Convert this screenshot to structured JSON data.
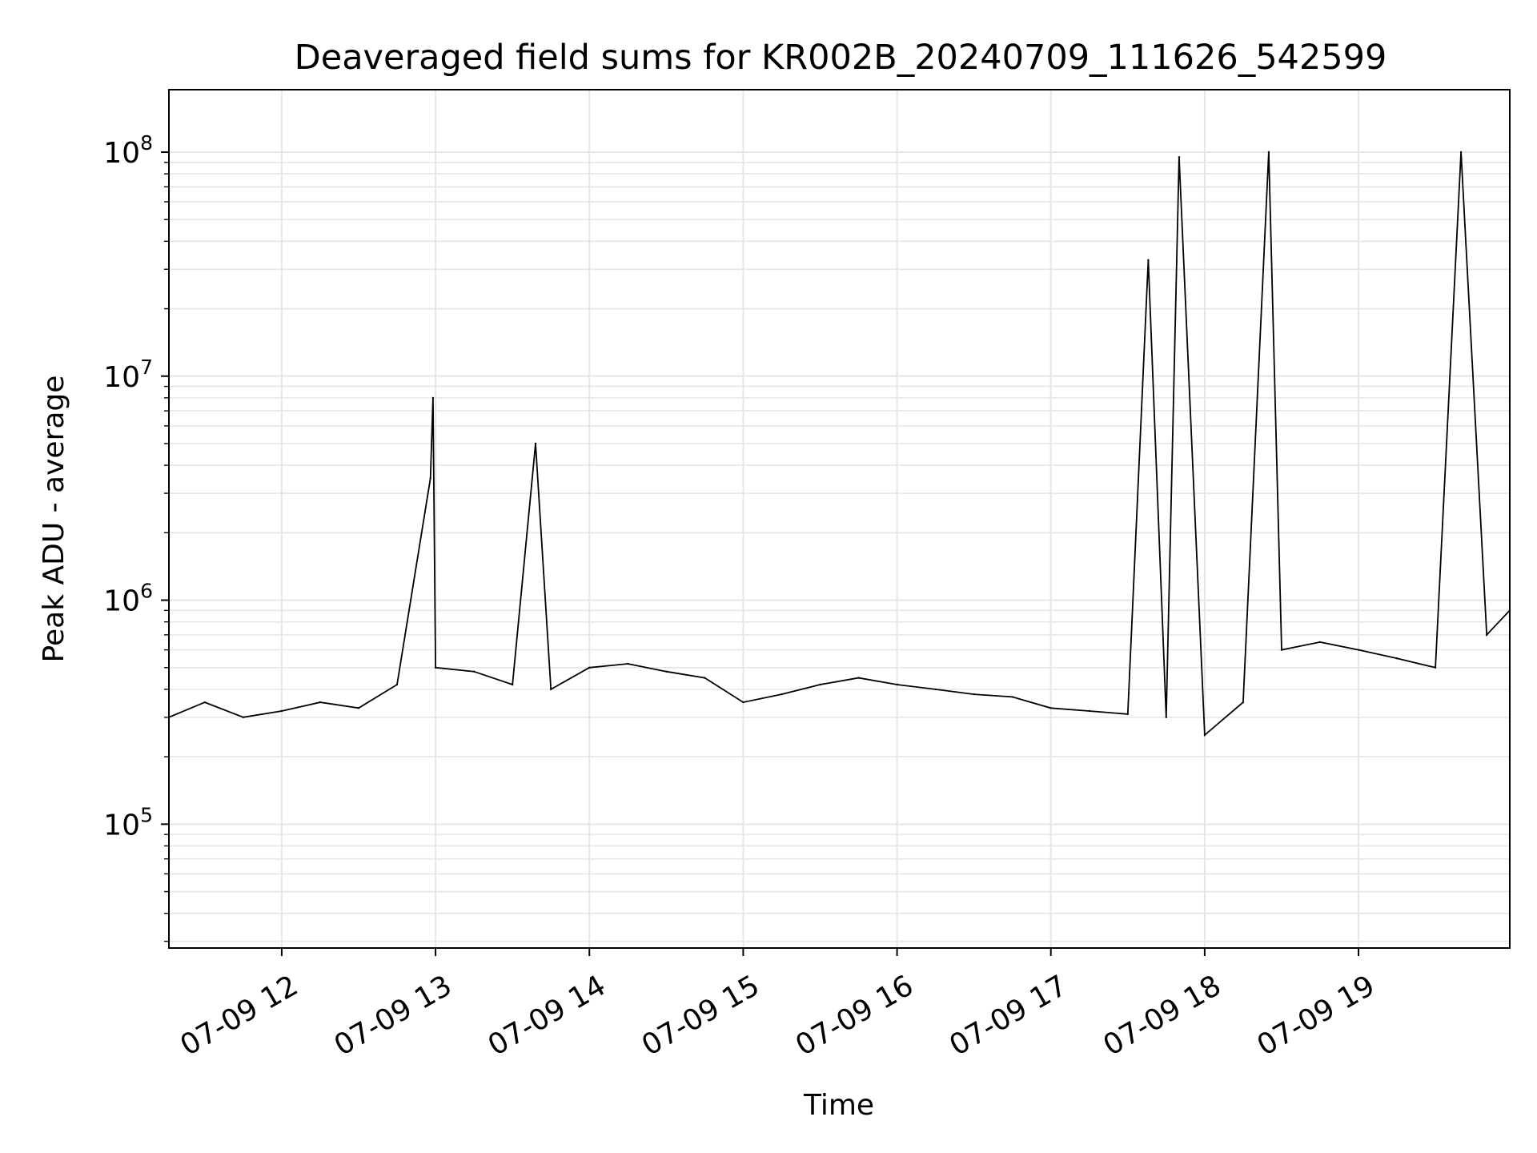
{
  "chart_data": {
    "type": "line",
    "title": "Deaveraged field sums for KR002B_20240709_111626_542599",
    "xlabel": "Time",
    "ylabel": "Peak ADU - average",
    "yscale": "log",
    "xlim": [
      "07-09 11:16",
      "07-09 19:59"
    ],
    "ylim": [
      28000,
      190000000
    ],
    "x_ticks": [
      {
        "t": "07-09 12:00",
        "label": "07-09 12"
      },
      {
        "t": "07-09 13:00",
        "label": "07-09 13"
      },
      {
        "t": "07-09 14:00",
        "label": "07-09 14"
      },
      {
        "t": "07-09 15:00",
        "label": "07-09 15"
      },
      {
        "t": "07-09 16:00",
        "label": "07-09 16"
      },
      {
        "t": "07-09 17:00",
        "label": "07-09 17"
      },
      {
        "t": "07-09 18:00",
        "label": "07-09 18"
      },
      {
        "t": "07-09 19:00",
        "label": "07-09 19"
      }
    ],
    "y_ticks": [
      {
        "value": 100000,
        "base": "10",
        "exponent": "5"
      },
      {
        "value": 1000000,
        "base": "10",
        "exponent": "6"
      },
      {
        "value": 10000000,
        "base": "10",
        "exponent": "7"
      },
      {
        "value": 100000000,
        "base": "10",
        "exponent": "8"
      }
    ],
    "grid": true,
    "grid_color": "#e6e6e6",
    "line_color": "#000000",
    "series": [
      {
        "x": [
          "07-09 11:16",
          "07-09 11:30",
          "07-09 11:45",
          "07-09 12:00",
          "07-09 12:15",
          "07-09 12:30",
          "07-09 12:45",
          "07-09 12:58",
          "07-09 12:59",
          "07-09 13:00",
          "07-09 13:15",
          "07-09 13:30",
          "07-09 13:39",
          "07-09 13:45",
          "07-09 14:00",
          "07-09 14:15",
          "07-09 14:30",
          "07-09 14:45",
          "07-09 15:00",
          "07-09 15:15",
          "07-09 15:30",
          "07-09 15:45",
          "07-09 16:00",
          "07-09 16:15",
          "07-09 16:30",
          "07-09 16:45",
          "07-09 17:00",
          "07-09 17:15",
          "07-09 17:30",
          "07-09 17:38",
          "07-09 17:45",
          "07-09 17:50",
          "07-09 18:00",
          "07-09 18:15",
          "07-09 18:25",
          "07-09 18:30",
          "07-09 18:45",
          "07-09 19:00",
          "07-09 19:15",
          "07-09 19:30",
          "07-09 19:40",
          "07-09 19:50",
          "07-09 19:59"
        ],
        "y": [
          300000,
          350000,
          300000,
          320000,
          350000,
          330000,
          420000,
          3500000,
          8000000,
          500000,
          480000,
          420000,
          5000000,
          400000,
          500000,
          520000,
          480000,
          450000,
          350000,
          380000,
          420000,
          450000,
          420000,
          400000,
          380000,
          370000,
          330000,
          320000,
          310000,
          33000000,
          300000,
          95000000,
          250000,
          350000,
          100000000,
          600000,
          650000,
          600000,
          550000,
          500000,
          100000000,
          700000,
          900000
        ]
      }
    ]
  }
}
